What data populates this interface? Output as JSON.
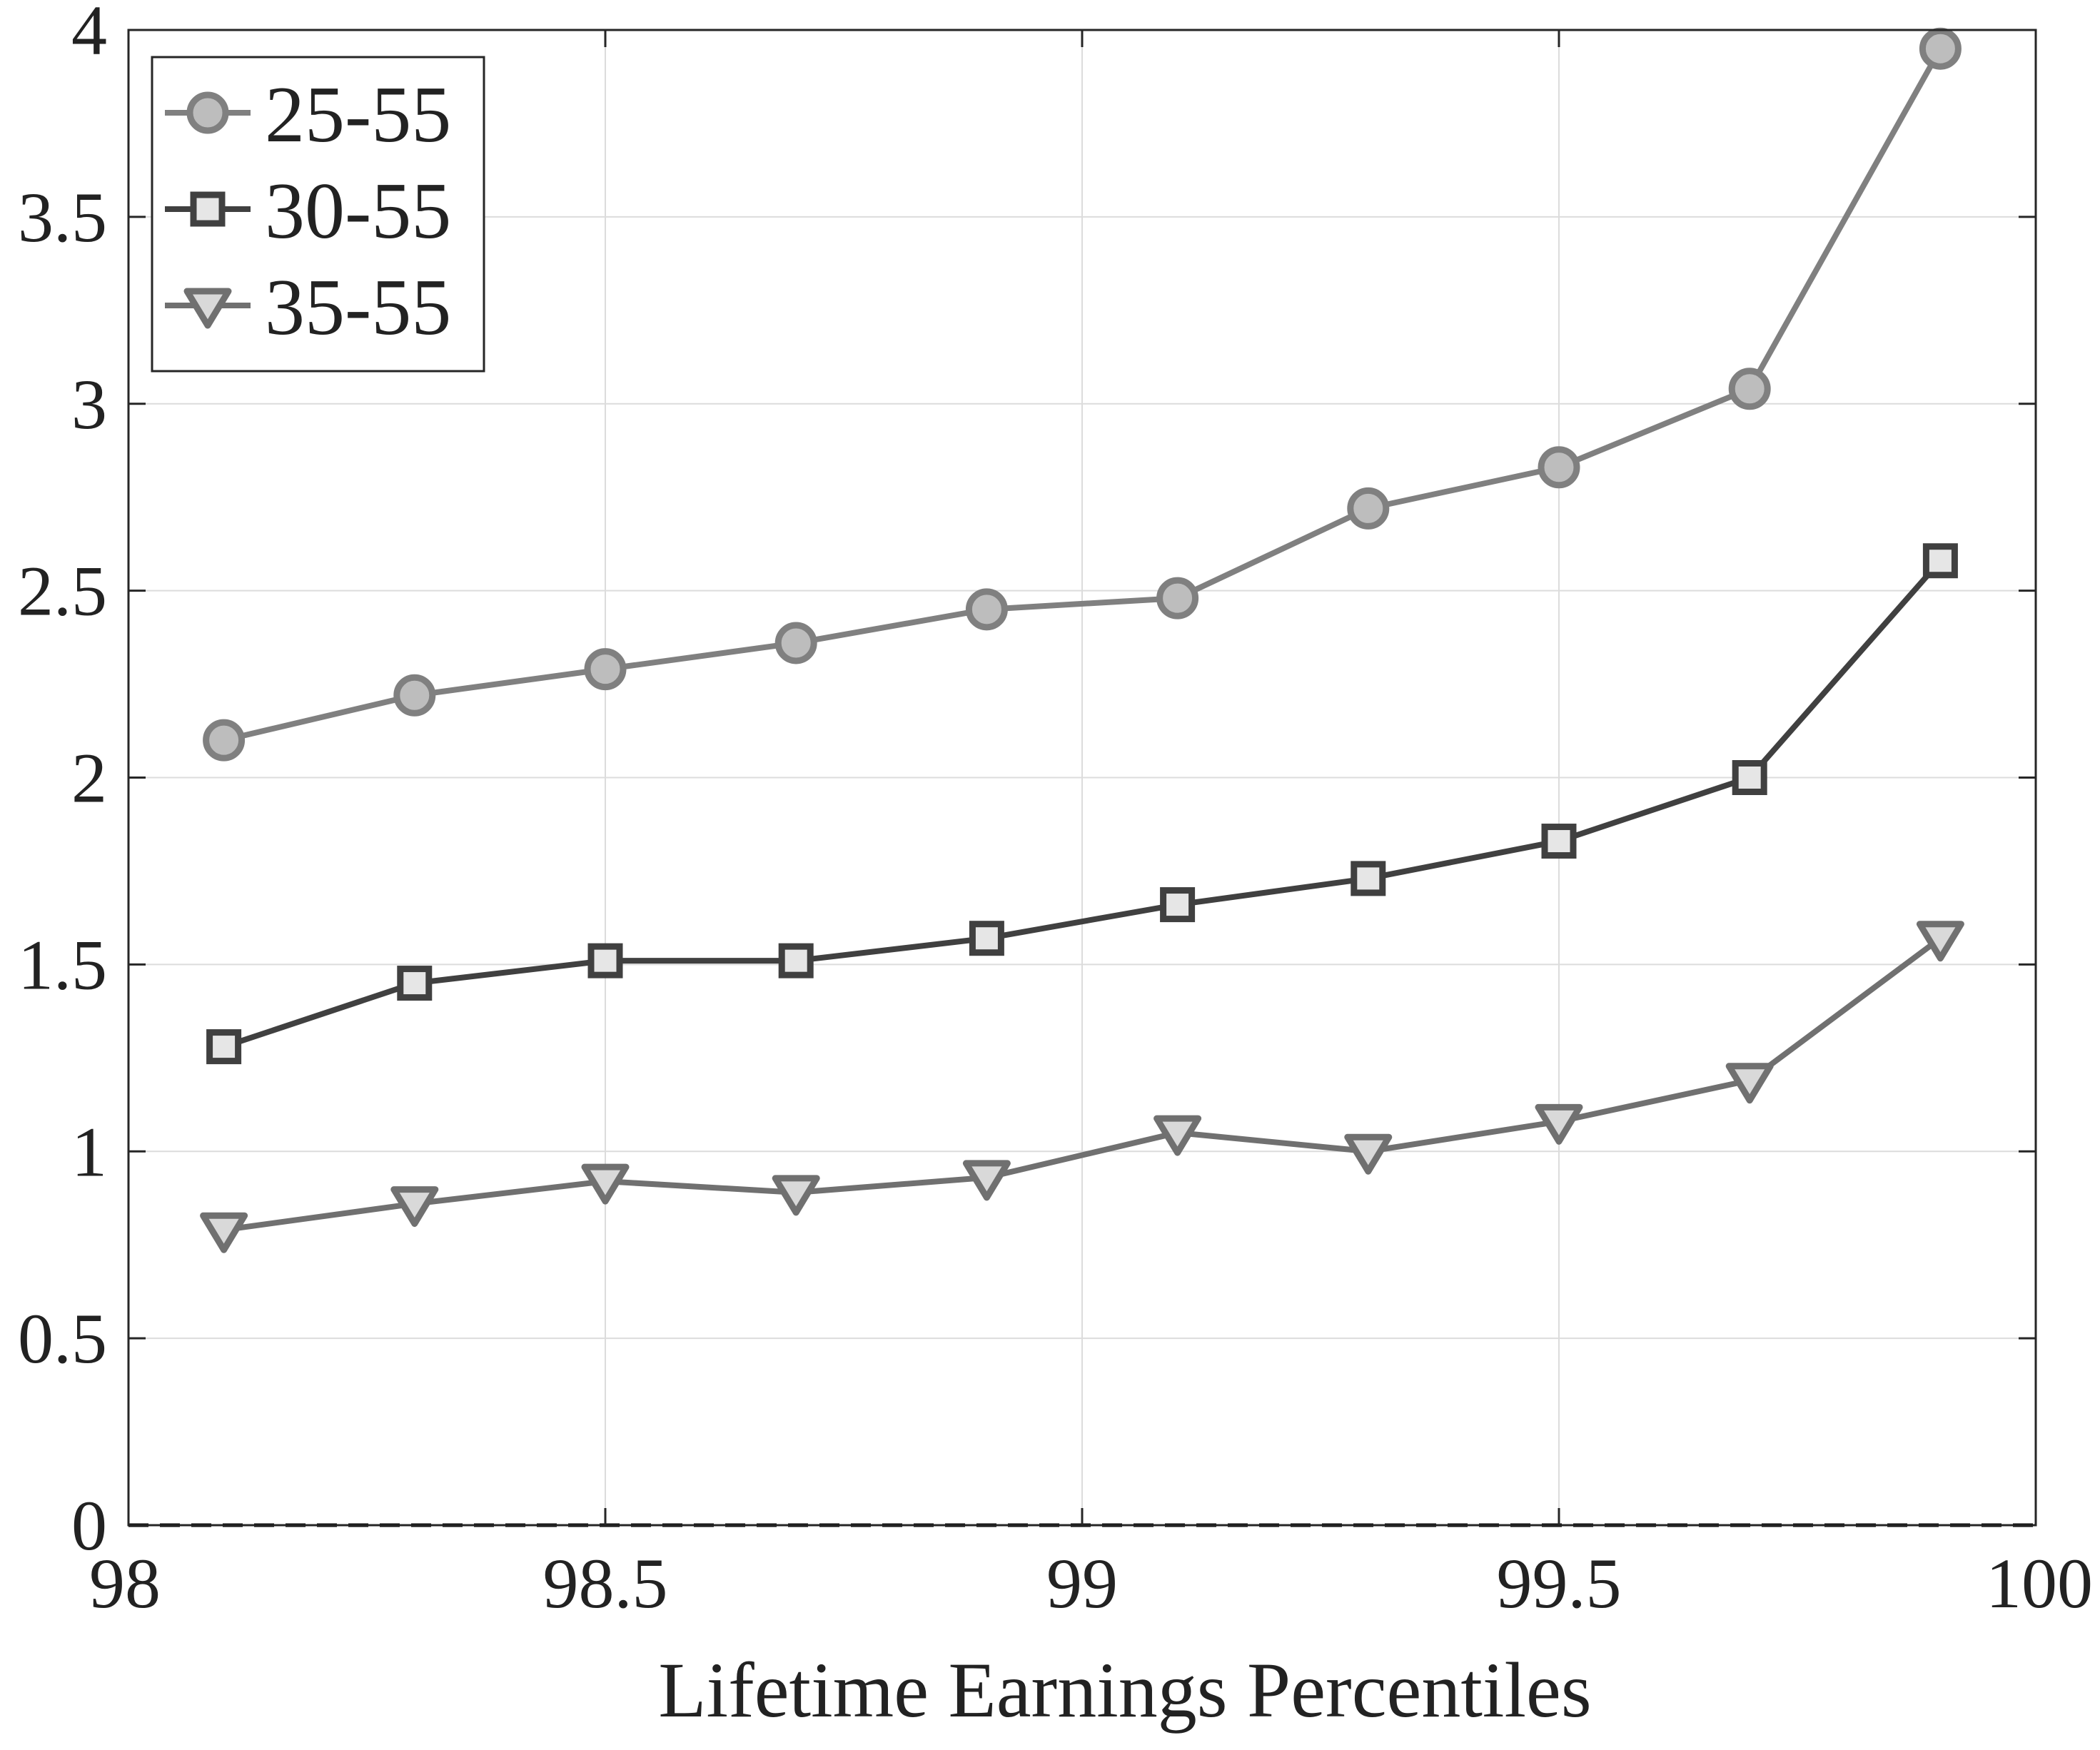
{
  "chart_data": {
    "type": "line",
    "title": "",
    "xlabel": "Lifetime Earnings Percentiles",
    "ylabel": "",
    "xlim": [
      98,
      100
    ],
    "ylim": [
      0,
      4
    ],
    "x_ticks": [
      98,
      98.5,
      99,
      99.5,
      100
    ],
    "x_tick_labels": [
      "98",
      "98.5",
      "99",
      "99.5",
      "100"
    ],
    "y_ticks": [
      0,
      0.5,
      1,
      1.5,
      2,
      2.5,
      3,
      3.5,
      4
    ],
    "y_tick_labels": [
      "0",
      "0.5",
      "1",
      "1.5",
      "2",
      "2.5",
      "3",
      "3.5",
      "4"
    ],
    "grid": true,
    "legend_position": "top-left",
    "reference_line": {
      "y": 0,
      "style": "dashed"
    },
    "x": [
      98.1,
      98.3,
      98.5,
      98.7,
      98.9,
      99.1,
      99.3,
      99.5,
      99.7,
      99.9
    ],
    "series": [
      {
        "name": "25-55",
        "marker": "circle",
        "line_color": "#808080",
        "marker_fill": "#bdbdbd",
        "marker_edge": "#808080",
        "values": [
          2.1,
          2.22,
          2.29,
          2.36,
          2.45,
          2.48,
          2.72,
          2.83,
          3.04,
          3.95
        ]
      },
      {
        "name": "30-55",
        "marker": "square",
        "line_color": "#404040",
        "marker_fill": "#e6e6e6",
        "marker_edge": "#404040",
        "values": [
          1.28,
          1.45,
          1.51,
          1.51,
          1.57,
          1.66,
          1.73,
          1.83,
          2.0,
          2.58
        ]
      },
      {
        "name": "35-55",
        "marker": "triangle-down",
        "line_color": "#707070",
        "marker_fill": "#d9d9d9",
        "marker_edge": "#707070",
        "values": [
          0.79,
          0.86,
          0.92,
          0.89,
          0.93,
          1.05,
          1.0,
          1.08,
          1.19,
          1.57
        ]
      }
    ]
  }
}
